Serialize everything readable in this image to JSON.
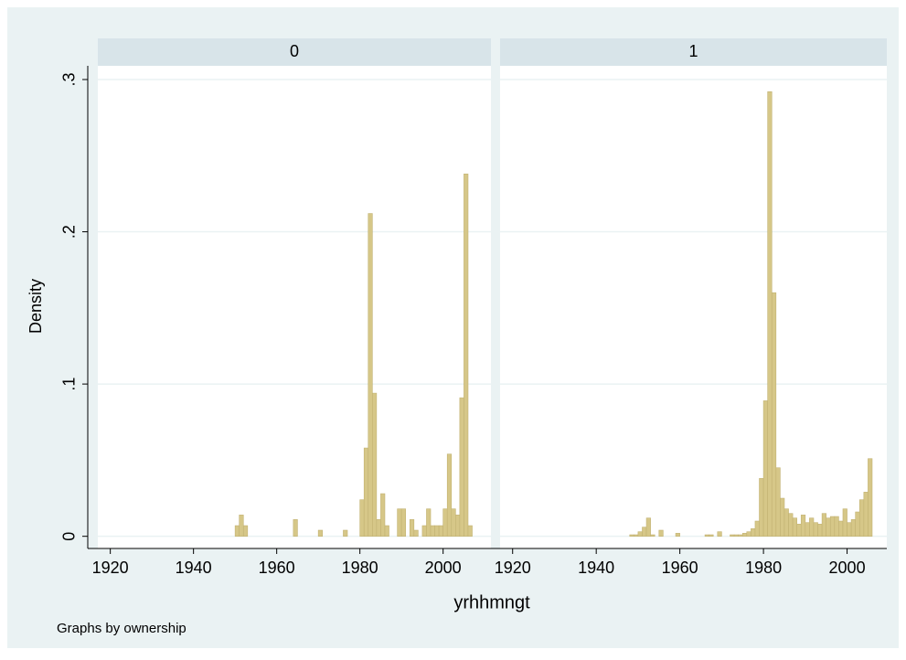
{
  "y_label": "Density",
  "x_label": "yrhhmngt",
  "note": "Graphs by ownership",
  "chart_data": [
    {
      "type": "histogram",
      "title": "0",
      "color": "#d6c788",
      "grid": true,
      "xlim": [
        1917,
        2011.5
      ],
      "ylim": [
        -0.008,
        0.309
      ],
      "xticks": [
        1920,
        1940,
        1960,
        1980,
        2000
      ],
      "yticks": [
        0,
        {
          "value": 0.1,
          "label": ".1"
        },
        {
          "value": 0.2,
          "label": ".2"
        },
        {
          "value": 0.3,
          "label": ".3"
        }
      ],
      "bins": [
        1950,
        1951,
        1952,
        1953,
        1954,
        1955,
        1956,
        1957,
        1958,
        1959,
        1960,
        1961,
        1962,
        1963,
        1964,
        1965,
        1966,
        1967,
        1968,
        1969,
        1970,
        1971,
        1972,
        1973,
        1974,
        1975,
        1976,
        1977,
        1978,
        1979,
        1980,
        1981,
        1982,
        1983,
        1984,
        1985,
        1986,
        1987,
        1988,
        1989,
        1990,
        1991,
        1992,
        1993,
        1994,
        1995,
        1996,
        1997,
        1998,
        1999,
        2000,
        2001,
        2002,
        2003,
        2004,
        2005,
        2006,
        2007
      ],
      "values": [
        0.007,
        0.014,
        0.007,
        0,
        0,
        0,
        0,
        0,
        0,
        0,
        0,
        0,
        0,
        0,
        0.011,
        0,
        0,
        0,
        0,
        0,
        0.004,
        0,
        0,
        0,
        0,
        0,
        0.004,
        0,
        0,
        0,
        0.024,
        0.058,
        0.212,
        0.094,
        0.011,
        0.028,
        0.007,
        0,
        0,
        0.018,
        0.018,
        0,
        0.011,
        0.004,
        0,
        0.007,
        0.018,
        0.007,
        0.007,
        0.007,
        0.018,
        0.054,
        0.018,
        0.014,
        0.091,
        0.238,
        0.007
      ]
    },
    {
      "type": "histogram",
      "title": "1",
      "color": "#d6c788",
      "grid": true,
      "xlim": [
        1917,
        2009.5
      ],
      "ylim": [
        -0.008,
        0.309
      ],
      "xticks": [
        1920,
        1940,
        1960,
        1980,
        2000
      ],
      "yticks": [
        0,
        {
          "value": 0.1,
          "label": ".1"
        },
        {
          "value": 0.2,
          "label": ".2"
        },
        {
          "value": 0.3,
          "label": ".3"
        }
      ],
      "bins": [
        1948,
        1949,
        1950,
        1951,
        1952,
        1953,
        1954,
        1955,
        1956,
        1957,
        1958,
        1959,
        1960,
        1961,
        1962,
        1963,
        1964,
        1965,
        1966,
        1967,
        1968,
        1969,
        1970,
        1971,
        1972,
        1973,
        1974,
        1975,
        1976,
        1977,
        1978,
        1979,
        1980,
        1981,
        1982,
        1983,
        1984,
        1985,
        1986,
        1987,
        1988,
        1989,
        1990,
        1991,
        1992,
        1993,
        1994,
        1995,
        1996,
        1997,
        1998,
        1999,
        2000,
        2001,
        2002,
        2003,
        2004,
        2005,
        2006
      ],
      "values": [
        0.001,
        0.001,
        0.003,
        0.006,
        0.012,
        0.001,
        0,
        0.004,
        0,
        0,
        0,
        0.002,
        0,
        0,
        0,
        0,
        0,
        0,
        0.001,
        0.001,
        0,
        0.003,
        0,
        0,
        0.001,
        0.001,
        0.001,
        0.002,
        0.003,
        0.005,
        0.01,
        0.038,
        0.089,
        0.292,
        0.16,
        0.045,
        0.025,
        0.018,
        0.015,
        0.012,
        0.008,
        0.014,
        0.009,
        0.012,
        0.009,
        0.008,
        0.015,
        0.012,
        0.013,
        0.013,
        0.01,
        0.018,
        0.009,
        0.011,
        0.016,
        0.024,
        0.029,
        0.051
      ]
    }
  ]
}
